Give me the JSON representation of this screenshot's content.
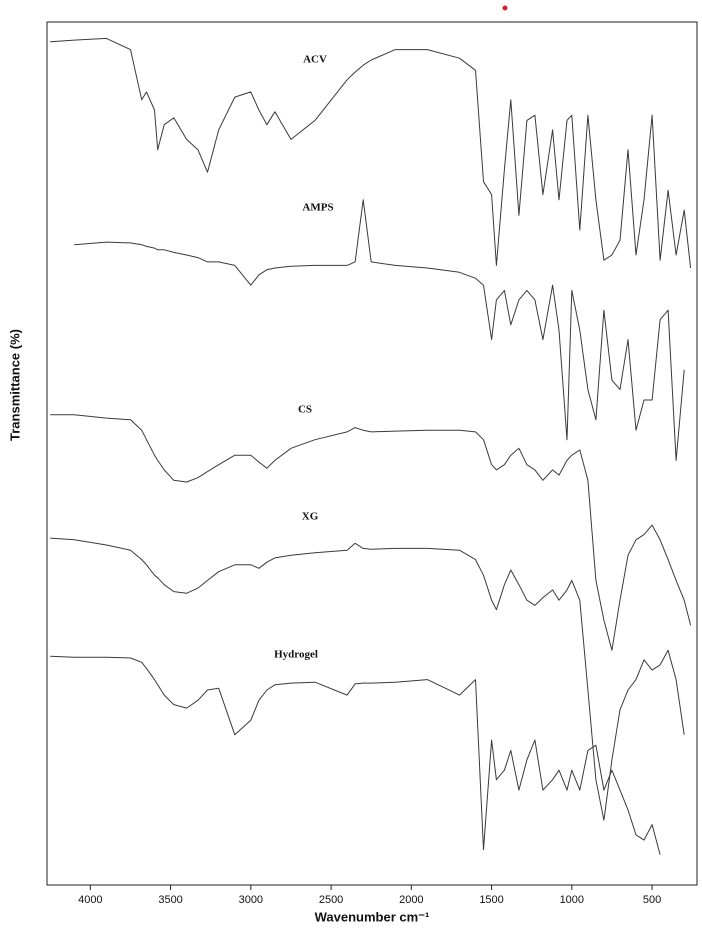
{
  "chart_data": {
    "type": "line",
    "x_label": "Wavenumber cm⁻¹",
    "y_label": "Transmittance (%)",
    "xlim": [
      4270,
      220
    ],
    "ylim": [
      0,
      100
    ],
    "xticks": [
      4000,
      3500,
      3000,
      2500,
      2000,
      1500,
      1000,
      500
    ],
    "x": [
      4250,
      4100,
      3900,
      3750,
      3680,
      3650,
      3600,
      3580,
      3540,
      3480,
      3400,
      3330,
      3270,
      3200,
      3100,
      3000,
      2950,
      2900,
      2850,
      2750,
      2600,
      2400,
      2350,
      2300,
      2250,
      2100,
      1900,
      1700,
      1600,
      1550,
      1500,
      1470,
      1420,
      1380,
      1330,
      1280,
      1230,
      1180,
      1120,
      1080,
      1030,
      1000,
      950,
      900,
      850,
      800,
      750,
      700,
      650,
      600,
      550,
      500,
      450,
      400,
      350,
      300,
      260
    ],
    "series": [
      {
        "name": "ACV",
        "color": "#3a3a3a",
        "values": [
          97.7,
          97.9,
          98.1,
          96.8,
          91.0,
          91.9,
          89.8,
          85.2,
          88.1,
          88.9,
          86.4,
          85.2,
          82.6,
          87.5,
          91.3,
          91.9,
          89.8,
          88.1,
          89.6,
          86.4,
          88.6,
          93.3,
          94.2,
          95.0,
          95.6,
          96.8,
          96.8,
          95.8,
          94.4,
          81.5,
          80.0,
          71.8,
          82.9,
          91.0,
          77.6,
          88.6,
          89.2,
          80.0,
          87.5,
          79.4,
          88.6,
          89.2,
          75.9,
          89.2,
          79.4,
          72.4,
          73.0,
          74.7,
          85.2,
          73.0,
          79.4,
          89.2,
          72.4,
          80.5,
          73.0,
          78.2,
          71.5
        ]
      },
      {
        "name": "AMPS",
        "color": "#3a3a3a",
        "values": [
          null,
          74.2,
          74.5,
          74.4,
          74.2,
          74.0,
          73.8,
          73.6,
          73.6,
          73.3,
          73.0,
          72.7,
          72.2,
          72.2,
          71.8,
          69.5,
          70.7,
          71.3,
          71.5,
          71.7,
          71.8,
          71.8,
          72.2,
          79.4,
          72.2,
          71.8,
          71.5,
          71.0,
          70.3,
          69.5,
          63.2,
          67.8,
          68.9,
          64.9,
          67.8,
          68.9,
          67.8,
          63.2,
          69.5,
          64.3,
          51.6,
          68.9,
          64.3,
          57.4,
          53.9,
          66.6,
          58.5,
          57.4,
          63.2,
          52.7,
          56.2,
          56.2,
          65.5,
          66.6,
          49.2,
          59.7,
          null
        ]
      },
      {
        "name": "CS",
        "color": "#3a3a3a",
        "values": [
          54.5,
          54.5,
          54.1,
          53.9,
          52.7,
          51.6,
          49.8,
          49.2,
          48.1,
          46.9,
          46.7,
          47.2,
          47.9,
          48.7,
          49.8,
          49.8,
          49.0,
          48.3,
          49.2,
          50.6,
          51.6,
          52.5,
          53.0,
          52.7,
          52.5,
          52.6,
          52.7,
          52.7,
          52.5,
          51.6,
          48.7,
          48.1,
          48.7,
          49.8,
          50.6,
          48.7,
          48.1,
          46.9,
          48.1,
          47.5,
          49.2,
          49.8,
          50.4,
          46.9,
          35.3,
          30.7,
          27.2,
          33.0,
          38.2,
          40.0,
          40.6,
          41.7,
          40.0,
          37.7,
          35.3,
          33.0,
          30.1
        ]
      },
      {
        "name": "XG",
        "color": "#3a3a3a",
        "values": [
          40.2,
          40.0,
          39.4,
          38.8,
          37.7,
          37.1,
          35.9,
          35.6,
          34.8,
          34.0,
          33.8,
          34.4,
          35.3,
          36.3,
          37.1,
          37.1,
          36.7,
          37.4,
          37.9,
          38.2,
          38.5,
          38.8,
          39.6,
          39.0,
          38.9,
          39.0,
          39.0,
          38.8,
          37.7,
          35.9,
          33.0,
          31.9,
          34.8,
          36.5,
          34.8,
          33.0,
          32.4,
          33.3,
          34.2,
          33.0,
          34.2,
          35.3,
          33.0,
          22.6,
          12.2,
          7.5,
          14.5,
          20.3,
          22.6,
          23.8,
          26.1,
          24.9,
          25.5,
          27.2,
          23.8,
          17.4,
          null
        ]
      },
      {
        "name": "Hydrogel",
        "color": "#3a3a3a",
        "values": [
          26.5,
          26.4,
          26.4,
          26.3,
          25.8,
          25.1,
          23.8,
          23.2,
          22.0,
          20.9,
          20.5,
          21.4,
          22.6,
          22.8,
          17.4,
          19.1,
          21.4,
          22.6,
          23.2,
          23.4,
          23.5,
          22.0,
          23.3,
          23.4,
          23.4,
          23.5,
          23.8,
          22.0,
          23.8,
          4.1,
          16.8,
          12.2,
          13.3,
          15.6,
          11.0,
          14.5,
          16.8,
          11.0,
          12.2,
          13.3,
          11.0,
          13.3,
          11.0,
          15.6,
          16.2,
          11.0,
          13.3,
          11.0,
          8.7,
          5.8,
          5.2,
          7.0,
          3.5,
          null,
          null,
          null,
          null
        ]
      }
    ]
  }
}
